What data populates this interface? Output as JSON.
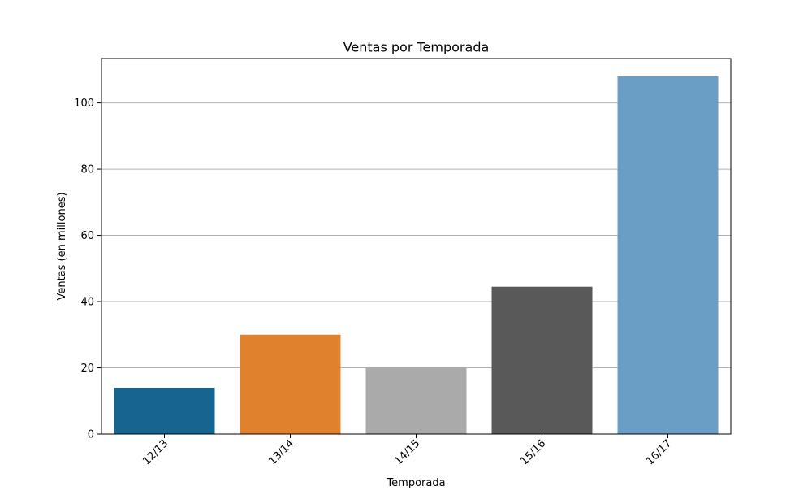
{
  "chart_data": {
    "type": "bar",
    "title": "Ventas por Temporada",
    "xlabel": "Temporada",
    "ylabel": "Ventas (en millones)",
    "categories": [
      "12/13",
      "13/14",
      "14/15",
      "15/16",
      "16/17"
    ],
    "values": [
      14,
      30,
      20,
      44.5,
      108
    ],
    "colors": [
      "#16648f",
      "#e0822d",
      "#aaaaaa",
      "#595959",
      "#6a9ec5"
    ],
    "ylim": [
      0,
      113.4
    ],
    "yticks": [
      0,
      20,
      40,
      60,
      80,
      100
    ],
    "grid": "y",
    "legend": "none",
    "xtick_rotation": 45
  }
}
